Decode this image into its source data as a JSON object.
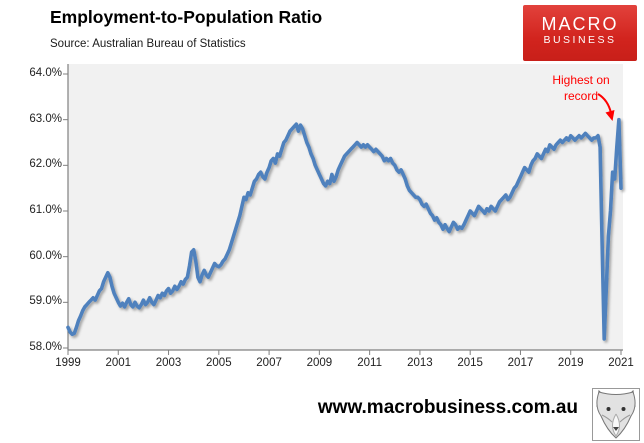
{
  "header": {
    "title": "Employment-to-Population Ratio",
    "source": "Source: Australian Bureau of Statistics"
  },
  "logo": {
    "line1": "MACRO",
    "line2": "BUSINESS",
    "bg_color": "#D2241E"
  },
  "annotation": {
    "line1": "Highest on",
    "line2": "record",
    "color": "#FF0000"
  },
  "footer": {
    "url": "www.macrobusiness.com.au"
  },
  "colors": {
    "line_blue": "#4F81BD",
    "plot_bg": "#F1F1F1",
    "axis_gray": "#808080"
  },
  "chart_data": {
    "type": "line",
    "title": "Employment-to-Population Ratio",
    "xlabel": "",
    "ylabel": "",
    "ylim": [
      58.0,
      64.0
    ],
    "grid": false,
    "legend": "none",
    "frequency": "monthly",
    "x_start": "1999-01",
    "x_end": "2021-01",
    "xtick_labels": [
      "1999",
      "2001",
      "2003",
      "2005",
      "2007",
      "2009",
      "2011",
      "2013",
      "2015",
      "2017",
      "2019",
      "2021"
    ],
    "ytick_labels": [
      "58.0%",
      "59.0%",
      "60.0%",
      "61.0%",
      "62.0%",
      "63.0%",
      "64.0%"
    ],
    "annotation_points_at": {
      "x": "2020-12",
      "value": 63.0
    },
    "series": [
      {
        "name": "Employment-to-population ratio (%)",
        "values": [
          58.45,
          58.35,
          58.3,
          58.32,
          58.45,
          58.6,
          58.7,
          58.82,
          58.9,
          58.95,
          59.0,
          59.05,
          59.1,
          59.05,
          59.15,
          59.25,
          59.3,
          59.45,
          59.55,
          59.65,
          59.55,
          59.35,
          59.2,
          59.1,
          59.0,
          58.92,
          58.98,
          58.9,
          59.0,
          59.08,
          58.95,
          58.9,
          59.0,
          58.92,
          58.88,
          58.95,
          59.05,
          58.95,
          59.0,
          59.1,
          59.0,
          58.95,
          59.05,
          59.15,
          59.1,
          59.2,
          59.15,
          59.25,
          59.3,
          59.2,
          59.25,
          59.35,
          59.28,
          59.35,
          59.45,
          59.4,
          59.5,
          59.55,
          59.8,
          60.1,
          60.15,
          59.9,
          59.55,
          59.45,
          59.6,
          59.7,
          59.6,
          59.55,
          59.65,
          59.75,
          59.85,
          59.8,
          59.78,
          59.82,
          59.9,
          59.95,
          60.05,
          60.15,
          60.3,
          60.45,
          60.6,
          60.75,
          60.9,
          61.1,
          61.3,
          61.25,
          61.4,
          61.35,
          61.5,
          61.65,
          61.7,
          61.8,
          61.85,
          61.75,
          61.7,
          61.85,
          61.95,
          62.1,
          62.15,
          62.05,
          62.25,
          62.2,
          62.35,
          62.5,
          62.55,
          62.65,
          62.75,
          62.8,
          62.85,
          62.9,
          62.75,
          62.88,
          62.8,
          62.65,
          62.5,
          62.4,
          62.25,
          62.15,
          62.0,
          61.9,
          61.8,
          61.7,
          61.6,
          61.55,
          61.65,
          61.6,
          61.8,
          61.65,
          61.75,
          61.9,
          62.0,
          62.1,
          62.2,
          62.25,
          62.3,
          62.35,
          62.4,
          62.45,
          62.5,
          62.45,
          62.4,
          62.45,
          62.4,
          62.45,
          62.4,
          62.35,
          62.3,
          62.35,
          62.3,
          62.25,
          62.2,
          62.1,
          62.15,
          62.1,
          62.15,
          62.05,
          62.0,
          61.9,
          61.85,
          61.9,
          61.8,
          61.7,
          61.55,
          61.45,
          61.4,
          61.35,
          61.3,
          61.3,
          61.25,
          61.15,
          61.1,
          61.15,
          61.05,
          60.95,
          60.9,
          60.8,
          60.85,
          60.75,
          60.7,
          60.6,
          60.7,
          60.62,
          60.55,
          60.65,
          60.75,
          60.7,
          60.6,
          60.65,
          60.62,
          60.7,
          60.8,
          60.9,
          61.0,
          60.95,
          60.9,
          61.0,
          61.1,
          61.05,
          61.0,
          60.95,
          61.05,
          61.0,
          61.1,
          61.05,
          61.0,
          61.1,
          61.2,
          61.25,
          61.3,
          61.35,
          61.25,
          61.3,
          61.4,
          61.5,
          61.55,
          61.65,
          61.75,
          61.85,
          61.95,
          61.9,
          61.85,
          62.0,
          62.1,
          62.15,
          62.25,
          62.2,
          62.15,
          62.25,
          62.35,
          62.3,
          62.45,
          62.4,
          62.35,
          62.45,
          62.5,
          62.55,
          62.5,
          62.55,
          62.6,
          62.55,
          62.65,
          62.6,
          62.55,
          62.6,
          62.65,
          62.6,
          62.65,
          62.7,
          62.65,
          62.6,
          62.55,
          62.6,
          62.6,
          62.65,
          62.4,
          60.3,
          58.2,
          59.3,
          60.45,
          61.0,
          61.85,
          61.7,
          62.4,
          63.0,
          61.5
        ]
      }
    ]
  }
}
